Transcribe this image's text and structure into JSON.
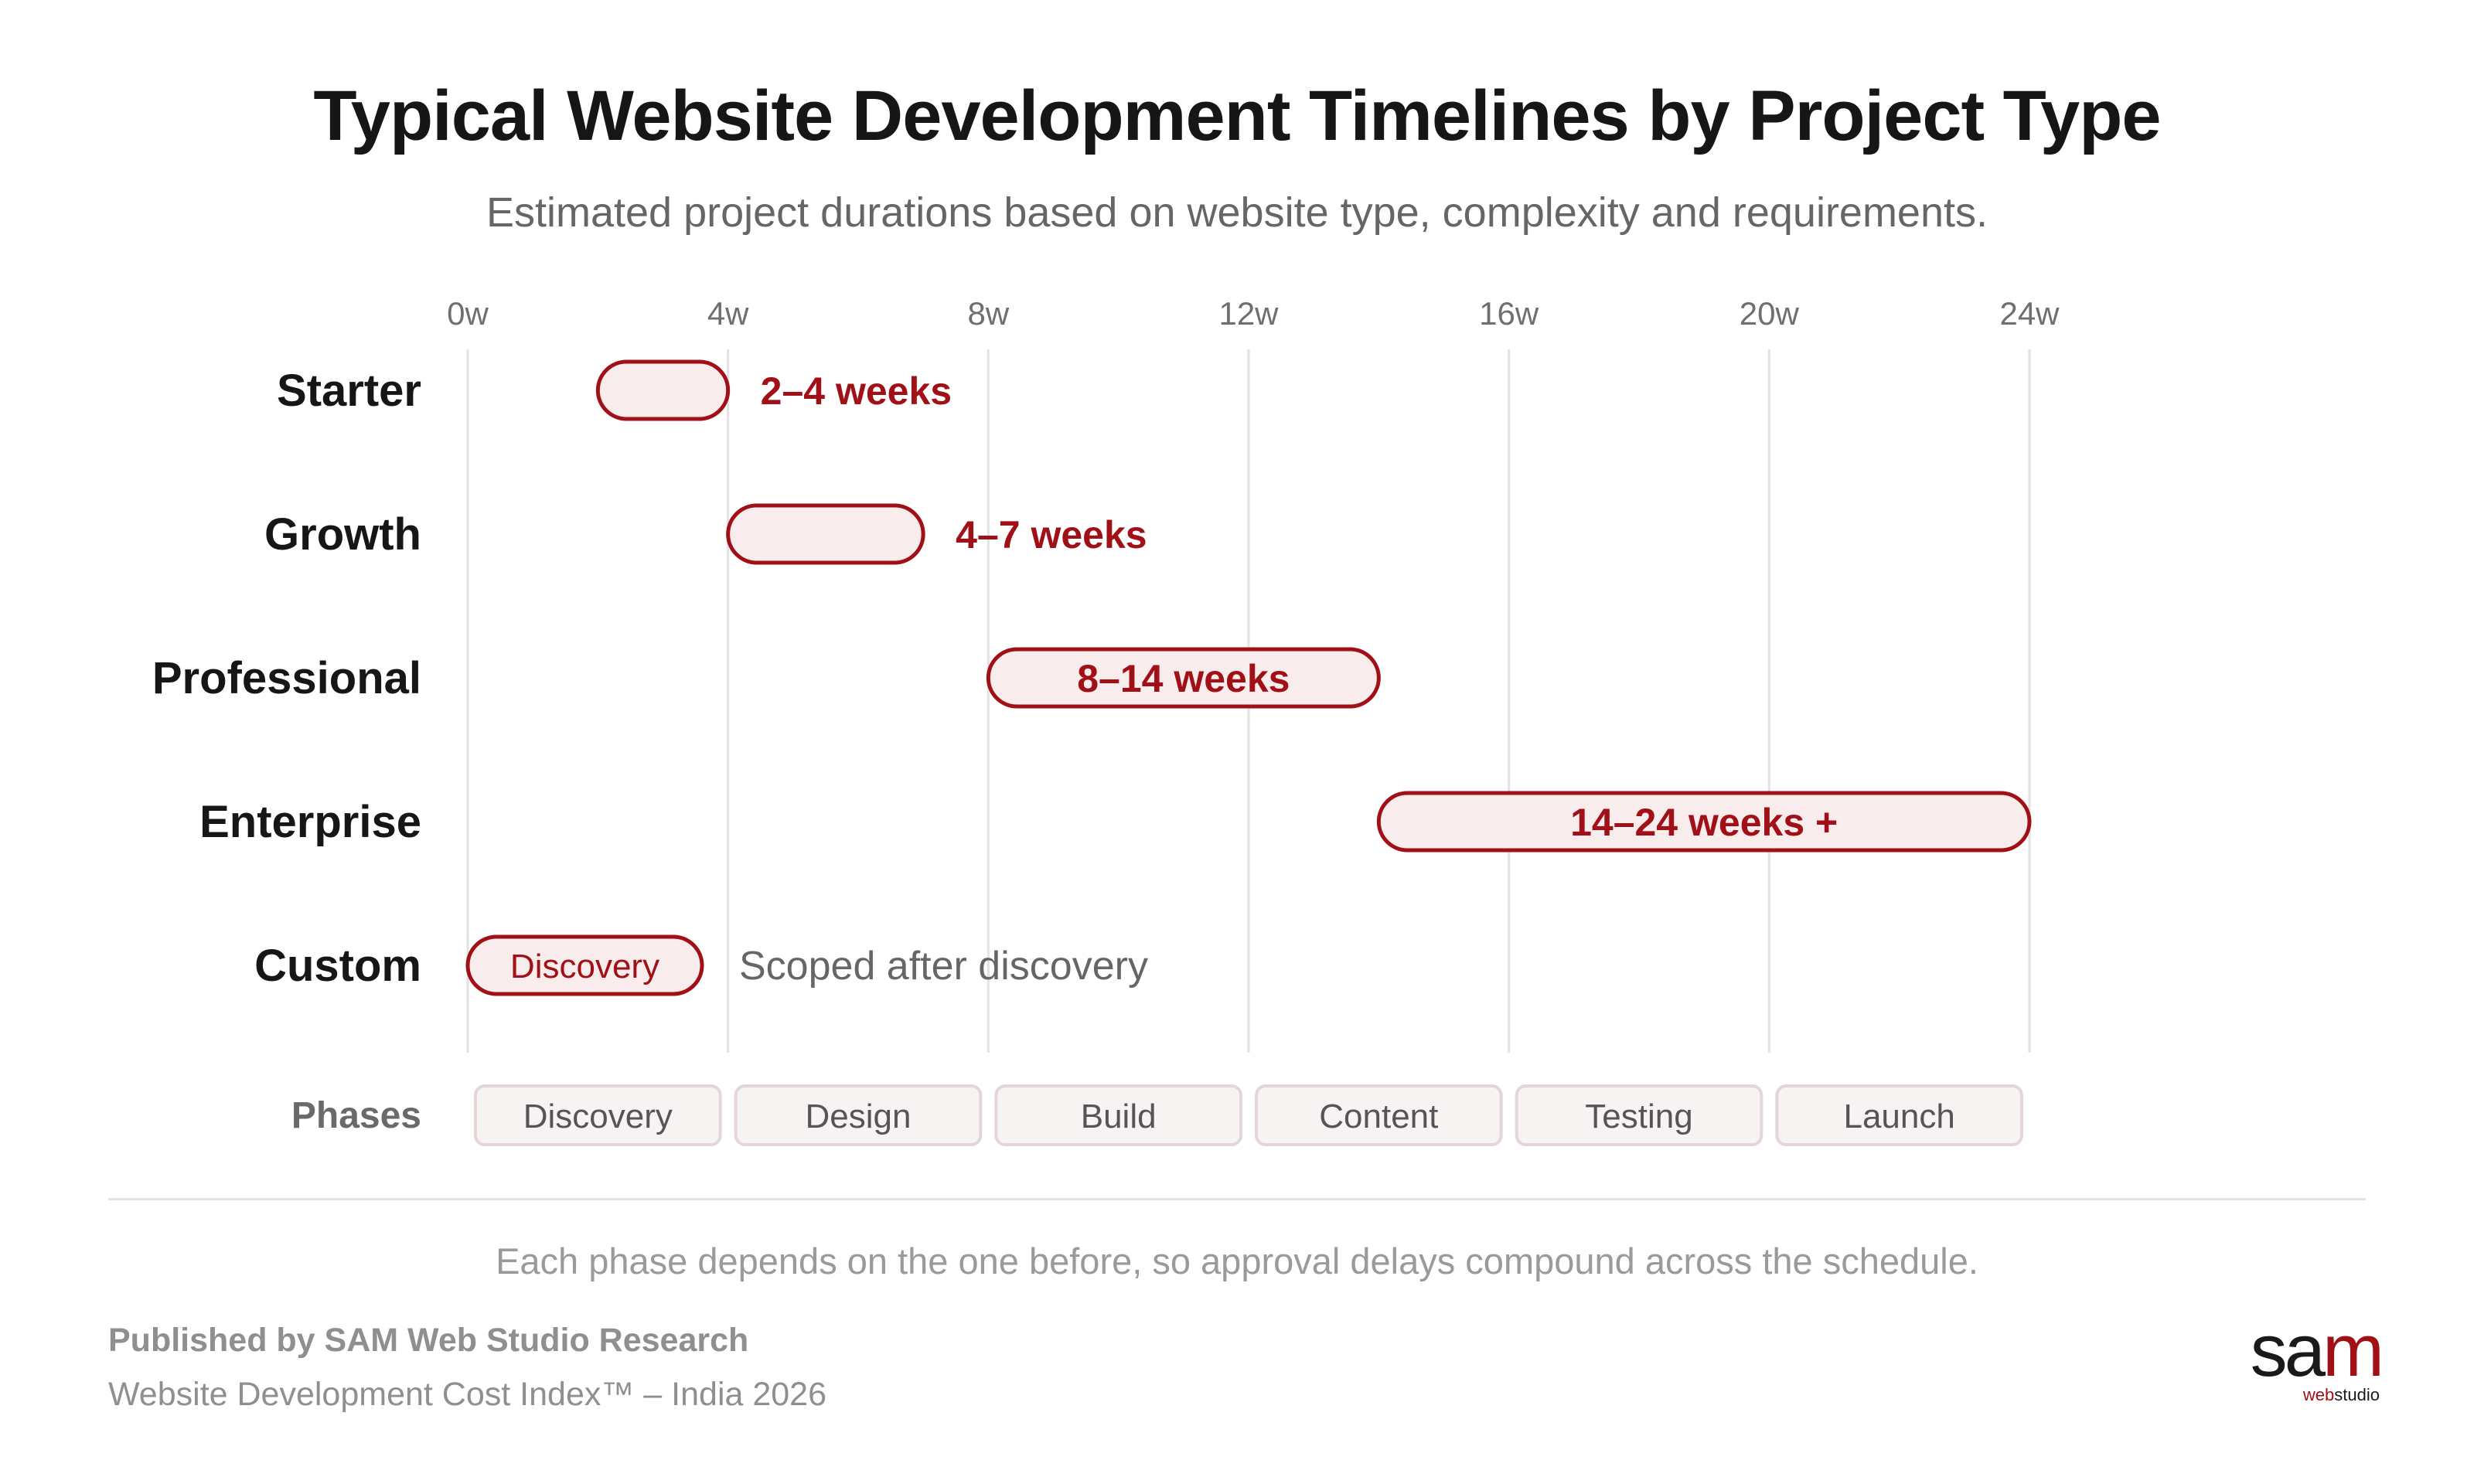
{
  "title": "Typical Website Development Timelines by Project Type",
  "subtitle": "Estimated project durations based on website type, complexity and requirements.",
  "chart_data": {
    "type": "bar",
    "orientation": "horizontal-range",
    "x_ticks": [
      "0w",
      "4w",
      "8w",
      "12w",
      "16w",
      "20w",
      "24w"
    ],
    "xlim": [
      0,
      24
    ],
    "grid": true,
    "rows": [
      {
        "category": "Starter",
        "start": 2,
        "end": 4,
        "label": "2–4 weeks",
        "label_position": "outside"
      },
      {
        "category": "Growth",
        "start": 4,
        "end": 7,
        "label": "4–7 weeks",
        "label_position": "outside"
      },
      {
        "category": "Professional",
        "start": 8,
        "end": 14,
        "label": "8–14 weeks",
        "label_position": "inside"
      },
      {
        "category": "Enterprise",
        "start": 14,
        "end": 24,
        "label": "14–24 weeks +",
        "label_position": "inside"
      },
      {
        "category": "Custom",
        "start": 0,
        "end": 3.6,
        "label": "Discovery",
        "label_position": "inside",
        "note": "Scoped after discovery"
      }
    ],
    "phases_label": "Phases",
    "phases": [
      "Discovery",
      "Design",
      "Build",
      "Content",
      "Testing",
      "Launch"
    ]
  },
  "colors": {
    "accent": "#a11016",
    "bar_fill": "#f8eced",
    "grid": "#e2e2e2",
    "phase_fill": "#f7f3f3",
    "phase_border": "#e4d6d7"
  },
  "footnote": "Each phase depends on the one before, so approval delays compound across the schedule.",
  "publisher": "Published by SAM Web Studio Research",
  "index_name": "Website Development Cost Index™ – India 2026",
  "logo": {
    "word_main": "sa",
    "word_accent": "m",
    "sub_main": "web",
    "sub_accent": "studio"
  }
}
